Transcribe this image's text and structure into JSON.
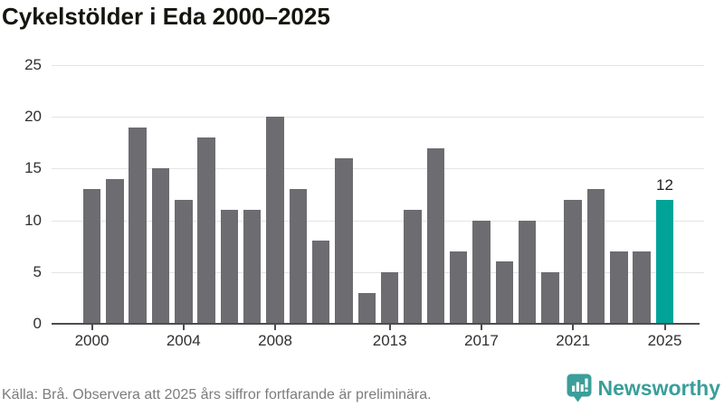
{
  "title": "Cykelstölder i Eda 2000–2025",
  "footer": {
    "source_note": "Källa: Brå. Observera att 2025 års siffror fortfarande är preliminära.",
    "brand_name": "Newsworthy"
  },
  "colors": {
    "bar": "#6c6c71",
    "highlight": "#00a398",
    "gridline": "#e4e4e4",
    "axis": "#4d4d4d",
    "brand": "#3b9e9a"
  },
  "icons": {
    "brand_logo": "newsworthy-speech-bubble-bar-chart-icon"
  },
  "chart_data": {
    "type": "bar",
    "title": "Cykelstölder i Eda 2000–2025",
    "categories": [
      2000,
      2001,
      2002,
      2003,
      2004,
      2005,
      2006,
      2007,
      2008,
      2009,
      2010,
      2011,
      2012,
      2013,
      2014,
      2015,
      2016,
      2017,
      2018,
      2019,
      2020,
      2021,
      2022,
      2023,
      2024,
      2025
    ],
    "values": [
      13,
      14,
      19,
      15,
      12,
      18,
      11,
      11,
      20,
      13,
      8,
      16,
      3,
      5,
      11,
      17,
      7,
      10,
      6,
      10,
      5,
      12,
      13,
      7,
      7,
      12
    ],
    "highlighted_category": 2025,
    "highlighted_value_label": "12",
    "x_tick_labels": [
      "2000",
      "2004",
      "2008",
      "2013",
      "2017",
      "2021",
      "2025"
    ],
    "y_ticks": [
      0,
      5,
      10,
      15,
      20,
      25
    ],
    "ylim": [
      0,
      25
    ],
    "xlabel": "",
    "ylabel": "",
    "grid": true,
    "legend": false
  }
}
